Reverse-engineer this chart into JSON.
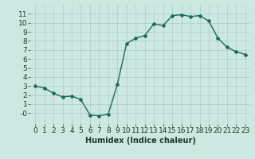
{
  "x": [
    0,
    1,
    2,
    3,
    4,
    5,
    6,
    7,
    8,
    9,
    10,
    11,
    12,
    13,
    14,
    15,
    16,
    17,
    18,
    19,
    20,
    21,
    22,
    23
  ],
  "y": [
    3.0,
    2.8,
    2.2,
    1.8,
    1.9,
    1.5,
    -0.2,
    -0.3,
    -0.1,
    3.2,
    7.7,
    8.3,
    8.6,
    9.9,
    9.7,
    10.8,
    10.9,
    10.7,
    10.8,
    10.2,
    8.3,
    7.3,
    6.8,
    6.5
  ],
  "line_color": "#1a6b5a",
  "marker": "D",
  "markersize": 2.0,
  "bg_color": "#cce8e0",
  "grid_color": "#aacfc5",
  "xlabel": "Humidex (Indice chaleur)",
  "xlim": [
    -0.5,
    23.5
  ],
  "ylim": [
    -1.2,
    12
  ],
  "yticks": [
    0,
    1,
    2,
    3,
    4,
    5,
    6,
    7,
    8,
    9,
    10,
    11
  ],
  "xticks": [
    0,
    1,
    2,
    3,
    4,
    5,
    6,
    7,
    8,
    9,
    10,
    11,
    12,
    13,
    14,
    15,
    16,
    17,
    18,
    19,
    20,
    21,
    22,
    23
  ],
  "ytick_labels": [
    "-0",
    "1",
    "2",
    "3",
    "4",
    "5",
    "6",
    "7",
    "8",
    "9",
    "10",
    "11"
  ],
  "xtick_labels": [
    "0",
    "1",
    "2",
    "3",
    "4",
    "5",
    "6",
    "7",
    "8",
    "9",
    "10",
    "11",
    "12",
    "13",
    "14",
    "15",
    "16",
    "17",
    "18",
    "19",
    "20",
    "21",
    "22",
    "23"
  ],
  "linewidth": 1.0,
  "xlabel_fontsize": 7,
  "tick_fontsize": 6.5
}
